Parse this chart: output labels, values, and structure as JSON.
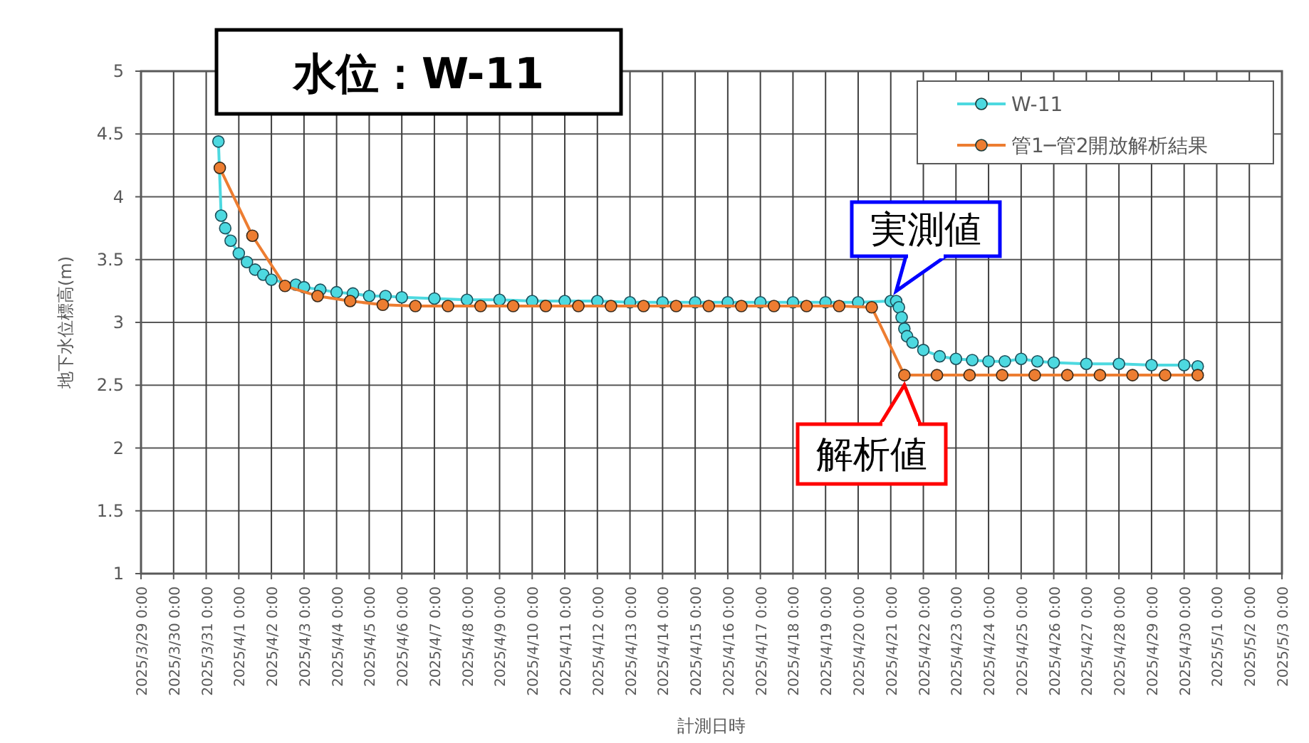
{
  "chart_data": {
    "type": "line",
    "title": "水位：W-11",
    "xlabel": "計測日時",
    "ylabel": "地下水位標高(m)",
    "xlim": [
      "2025-03-29T00:00",
      "2025-05-03T00:00"
    ],
    "xticks": [
      {
        "value": "2025-03-29T00:00",
        "label": "2025/3/29 0:00"
      },
      {
        "value": "2025-03-30T00:00",
        "label": "2025/3/30 0:00"
      },
      {
        "value": "2025-03-31T00:00",
        "label": "2025/3/31 0:00"
      },
      {
        "value": "2025-04-01T00:00",
        "label": "2025/4/1 0:00"
      },
      {
        "value": "2025-04-02T00:00",
        "label": "2025/4/2 0:00"
      },
      {
        "value": "2025-04-03T00:00",
        "label": "2025/4/3 0:00"
      },
      {
        "value": "2025-04-04T00:00",
        "label": "2025/4/4 0:00"
      },
      {
        "value": "2025-04-05T00:00",
        "label": "2025/4/5 0:00"
      },
      {
        "value": "2025-04-06T00:00",
        "label": "2025/4/6 0:00"
      },
      {
        "value": "2025-04-07T00:00",
        "label": "2025/4/7 0:00"
      },
      {
        "value": "2025-04-08T00:00",
        "label": "2025/4/8 0:00"
      },
      {
        "value": "2025-04-09T00:00",
        "label": "2025/4/9 0:00"
      },
      {
        "value": "2025-04-10T00:00",
        "label": "2025/4/10 0:00"
      },
      {
        "value": "2025-04-11T00:00",
        "label": "2025/4/11 0:00"
      },
      {
        "value": "2025-04-12T00:00",
        "label": "2025/4/12 0:00"
      },
      {
        "value": "2025-04-13T00:00",
        "label": "2025/4/13 0:00"
      },
      {
        "value": "2025-04-14T00:00",
        "label": "2025/4/14 0:00"
      },
      {
        "value": "2025-04-15T00:00",
        "label": "2025/4/15 0:00"
      },
      {
        "value": "2025-04-16T00:00",
        "label": "2025/4/16 0:00"
      },
      {
        "value": "2025-04-17T00:00",
        "label": "2025/4/17 0:00"
      },
      {
        "value": "2025-04-18T00:00",
        "label": "2025/4/18 0:00"
      },
      {
        "value": "2025-04-19T00:00",
        "label": "2025/4/19 0:00"
      },
      {
        "value": "2025-04-20T00:00",
        "label": "2025/4/20 0:00"
      },
      {
        "value": "2025-04-21T00:00",
        "label": "2025/4/21 0:00"
      },
      {
        "value": "2025-04-22T00:00",
        "label": "2025/4/22 0:00"
      },
      {
        "value": "2025-04-23T00:00",
        "label": "2025/4/23 0:00"
      },
      {
        "value": "2025-04-24T00:00",
        "label": "2025/4/24 0:00"
      },
      {
        "value": "2025-04-25T00:00",
        "label": "2025/4/25 0:00"
      },
      {
        "value": "2025-04-26T00:00",
        "label": "2025/4/26 0:00"
      },
      {
        "value": "2025-04-27T00:00",
        "label": "2025/4/27 0:00"
      },
      {
        "value": "2025-04-28T00:00",
        "label": "2025/4/28 0:00"
      },
      {
        "value": "2025-04-29T00:00",
        "label": "2025/4/29 0:00"
      },
      {
        "value": "2025-04-30T00:00",
        "label": "2025/4/30 0:00"
      },
      {
        "value": "2025-05-01T00:00",
        "label": "2025/5/1 0:00"
      },
      {
        "value": "2025-05-02T00:00",
        "label": "2025/5/2 0:00"
      },
      {
        "value": "2025-05-03T00:00",
        "label": "2025/5/3 0:00"
      }
    ],
    "ylim": [
      1,
      5
    ],
    "yticks": [
      1,
      1.5,
      2,
      2.5,
      3,
      3.5,
      4,
      4.5,
      5
    ],
    "grid": true,
    "legend": "top right",
    "marker": "circle",
    "line_style": "solid",
    "series": [
      {
        "name": "W-11",
        "color": "#4dd9e0",
        "x": [
          "2025-03-31T09:00",
          "2025-03-31T11:00",
          "2025-03-31T14:00",
          "2025-03-31T18:00",
          "2025-04-01T00:00",
          "2025-04-01T06:00",
          "2025-04-01T12:00",
          "2025-04-01T18:00",
          "2025-04-02T00:00",
          "2025-04-02T18:00",
          "2025-04-03T00:00",
          "2025-04-03T12:00",
          "2025-04-04T00:00",
          "2025-04-04T12:00",
          "2025-04-05T00:00",
          "2025-04-05T12:00",
          "2025-04-06T00:00",
          "2025-04-07T00:00",
          "2025-04-08T00:00",
          "2025-04-09T00:00",
          "2025-04-10T00:00",
          "2025-04-11T00:00",
          "2025-04-12T00:00",
          "2025-04-13T00:00",
          "2025-04-14T00:00",
          "2025-04-15T00:00",
          "2025-04-16T00:00",
          "2025-04-17T00:00",
          "2025-04-18T00:00",
          "2025-04-19T00:00",
          "2025-04-20T00:00",
          "2025-04-21T00:00",
          "2025-04-21T04:00",
          "2025-04-21T06:00",
          "2025-04-21T08:00",
          "2025-04-21T10:00",
          "2025-04-21T12:00",
          "2025-04-21T16:00",
          "2025-04-22T00:00",
          "2025-04-22T12:00",
          "2025-04-23T00:00",
          "2025-04-23T12:00",
          "2025-04-24T00:00",
          "2025-04-24T12:00",
          "2025-04-25T00:00",
          "2025-04-25T12:00",
          "2025-04-26T00:00",
          "2025-04-27T00:00",
          "2025-04-28T00:00",
          "2025-04-29T00:00",
          "2025-04-30T00:00",
          "2025-04-30T10:00"
        ],
        "values": [
          4.44,
          3.85,
          3.75,
          3.65,
          3.55,
          3.48,
          3.42,
          3.38,
          3.34,
          3.3,
          3.28,
          3.26,
          3.24,
          3.23,
          3.21,
          3.21,
          3.2,
          3.19,
          3.18,
          3.18,
          3.17,
          3.17,
          3.17,
          3.16,
          3.16,
          3.16,
          3.16,
          3.16,
          3.16,
          3.16,
          3.16,
          3.17,
          3.17,
          3.12,
          3.04,
          2.95,
          2.89,
          2.84,
          2.78,
          2.73,
          2.71,
          2.7,
          2.69,
          2.69,
          2.71,
          2.69,
          2.68,
          2.67,
          2.67,
          2.66,
          2.66,
          2.65
        ]
      },
      {
        "name": "管1─管2開放解析結果",
        "color": "#ed7d31",
        "x": [
          "2025-03-31T10:00",
          "2025-04-01T10:00",
          "2025-04-02T10:00",
          "2025-04-03T10:00",
          "2025-04-04T10:00",
          "2025-04-05T10:00",
          "2025-04-06T10:00",
          "2025-04-07T10:00",
          "2025-04-08T10:00",
          "2025-04-09T10:00",
          "2025-04-10T10:00",
          "2025-04-11T10:00",
          "2025-04-12T10:00",
          "2025-04-13T10:00",
          "2025-04-14T10:00",
          "2025-04-15T10:00",
          "2025-04-16T10:00",
          "2025-04-17T10:00",
          "2025-04-18T10:00",
          "2025-04-19T10:00",
          "2025-04-20T10:00",
          "2025-04-21T10:00",
          "2025-04-22T10:00",
          "2025-04-23T10:00",
          "2025-04-24T10:00",
          "2025-04-25T10:00",
          "2025-04-26T10:00",
          "2025-04-27T10:00",
          "2025-04-28T10:00",
          "2025-04-29T10:00",
          "2025-04-30T10:00"
        ],
        "values": [
          4.23,
          3.69,
          3.29,
          3.21,
          3.17,
          3.14,
          3.13,
          3.13,
          3.13,
          3.13,
          3.13,
          3.13,
          3.13,
          3.13,
          3.13,
          3.13,
          3.13,
          3.13,
          3.13,
          3.13,
          3.12,
          2.58,
          2.58,
          2.58,
          2.58,
          2.58,
          2.58,
          2.58,
          2.58,
          2.58,
          2.58
        ]
      }
    ],
    "annotations": [
      {
        "text": "実測値",
        "x": "2025-04-21T04:00",
        "y": 3.17
      },
      {
        "text": "解析値",
        "x": "2025-04-21T10:00",
        "y": 2.58
      }
    ]
  }
}
